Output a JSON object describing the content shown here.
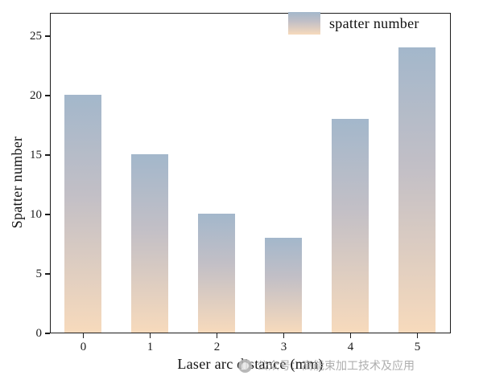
{
  "chart_data": {
    "type": "bar",
    "categories": [
      "0",
      "1",
      "2",
      "3",
      "4",
      "5"
    ],
    "values": [
      20,
      15,
      10,
      8,
      18,
      24
    ],
    "title": "",
    "xlabel": "Laser arc distance (mm)",
    "ylabel": "Spatter number",
    "ylim": [
      0,
      25
    ],
    "yticks": [
      0,
      5,
      10,
      15,
      20,
      25
    ],
    "grid": false,
    "legend": {
      "label": "spatter number",
      "position": "top-right"
    },
    "bar_gradient": {
      "top": "#a3b7cb",
      "mid": "#c2bfc6",
      "bottom": "#f7dabc"
    },
    "axis_color": "#1c1c1c"
  },
  "watermark": {
    "text": "公众号：高能束加工技术及应用",
    "logo_icon": "round-social-logo"
  }
}
